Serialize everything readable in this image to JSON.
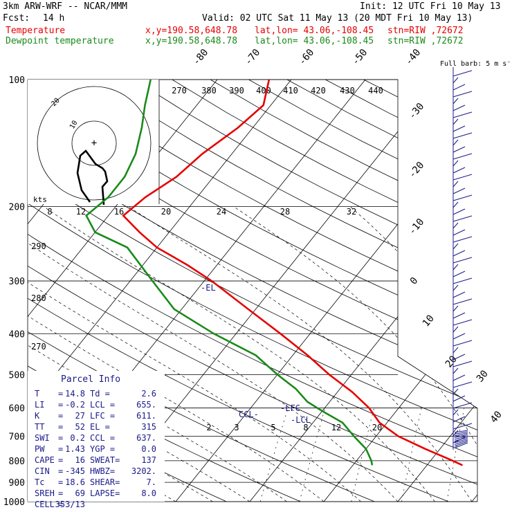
{
  "header": {
    "model": "3km ARW-WRF -- NCAR/MMM",
    "init": "Init: 12 UTC Fri 10 May 13",
    "fcst_label": "Fcst:",
    "fcst_value": "14 h",
    "valid": "Valid: 02 UTC Sat 11 May 13 (20 MDT Fri 10 May 13)",
    "temp_label": "Temperature",
    "dew_label": "Dewpoint temperature",
    "xy": "x,y=190.58,648.78",
    "latlon": "lat,lon= 43.06,-108.45",
    "stn": "stn=RIW ,72672"
  },
  "colors": {
    "temperature": "#e60000",
    "dewpoint": "#1a8a1a",
    "wind": "#1a1a8a",
    "parcel": "#1a1a8a",
    "grid": "#000000"
  },
  "chart_data": {
    "type": "line",
    "title": "",
    "ylabel_ticks": [
      "100",
      "200",
      "300",
      "400",
      "500",
      "600",
      "700",
      "800",
      "900",
      "1000"
    ],
    "pressure_levels": [
      100,
      200,
      300,
      400,
      500,
      600,
      700,
      800,
      900,
      1000
    ],
    "isotherm_labels": [
      "-80",
      "-70",
      "-60",
      "-50",
      "-40",
      "-30",
      "-20",
      "-10",
      "0",
      "10",
      "20",
      "30",
      "40"
    ],
    "theta_labels": [
      "270",
      "280",
      "290"
    ],
    "mixing_ratio_labels": [
      "2",
      "3",
      "5",
      "8",
      "12",
      "20"
    ],
    "series": [
      {
        "name": "Temperature",
        "points": [
          [
            1000,
            null
          ],
          [
            820,
            14.8
          ],
          [
            800,
            13
          ],
          [
            750,
            8
          ],
          [
            700,
            3
          ],
          [
            650,
            -1
          ],
          [
            600,
            -4
          ],
          [
            550,
            -8
          ],
          [
            500,
            -13
          ],
          [
            450,
            -18
          ],
          [
            400,
            -24
          ],
          [
            350,
            -31
          ],
          [
            300,
            -39
          ],
          [
            275,
            -44
          ],
          [
            250,
            -50
          ],
          [
            230,
            -54
          ],
          [
            210,
            -58
          ],
          [
            190,
            -57
          ],
          [
            170,
            -55
          ],
          [
            150,
            -54
          ],
          [
            130,
            -52
          ],
          [
            115,
            -51
          ],
          [
            100,
            -53
          ]
        ]
      },
      {
        "name": "Dewpoint temperature",
        "points": [
          [
            820,
            2.6
          ],
          [
            800,
            2
          ],
          [
            750,
            0
          ],
          [
            700,
            -3
          ],
          [
            650,
            -6
          ],
          [
            610,
            -10
          ],
          [
            580,
            -13
          ],
          [
            540,
            -16
          ],
          [
            500,
            -20
          ],
          [
            450,
            -25
          ],
          [
            400,
            -33
          ],
          [
            350,
            -41
          ],
          [
            300,
            -47
          ],
          [
            250,
            -54
          ],
          [
            230,
            -60
          ],
          [
            210,
            -63
          ],
          [
            190,
            -62
          ],
          [
            170,
            -62
          ],
          [
            150,
            -63
          ],
          [
            130,
            -65
          ],
          [
            115,
            -67
          ],
          [
            100,
            -69
          ]
        ]
      }
    ],
    "hodograph": {
      "rings_kts": [
        "10",
        "20"
      ],
      "kts_label": "kts"
    },
    "theta_axis_top": [
      "270",
      "380",
      "390",
      "400",
      "410",
      "420",
      "430",
      "440"
    ],
    "theta_axis_bottom": [
      "8",
      "12",
      "16",
      "20",
      "24",
      "28",
      "32"
    ],
    "annotations": {
      "el": "-EL",
      "lfc": "-LFC",
      "lcl": "-LCL",
      "ccl": "CCL-"
    },
    "wind_legend": "Full barb: 5 m s⁻¹",
    "parcel_info": {
      "title": "Parcel Info",
      "rows": [
        [
          "T",
          "=",
          "14.8",
          "Td =",
          "2.6"
        ],
        [
          "LI",
          "=",
          "-0.2",
          "LCL =",
          "655."
        ],
        [
          "K",
          "=",
          "27",
          "LFC =",
          "611."
        ],
        [
          "TT",
          "=",
          "52",
          "EL =",
          "315"
        ],
        [
          "SWI",
          "=",
          "0.2",
          "CCL =",
          "637."
        ],
        [
          "PW",
          "=",
          "1.43",
          "YGP =",
          "0.0"
        ],
        [
          "CAPE",
          "=",
          "16",
          "SWEAT=",
          "137"
        ],
        [
          "CIN",
          "=",
          "-345",
          "HWBZ=",
          "3202."
        ],
        [
          "Tc",
          "=",
          "18.6",
          "SHEAR=",
          "7."
        ],
        [
          "SREH",
          "=",
          "69",
          "LAPSE=",
          "8.0"
        ],
        [
          "CELL",
          "=",
          "353/13",
          "",
          ""
        ]
      ]
    }
  }
}
